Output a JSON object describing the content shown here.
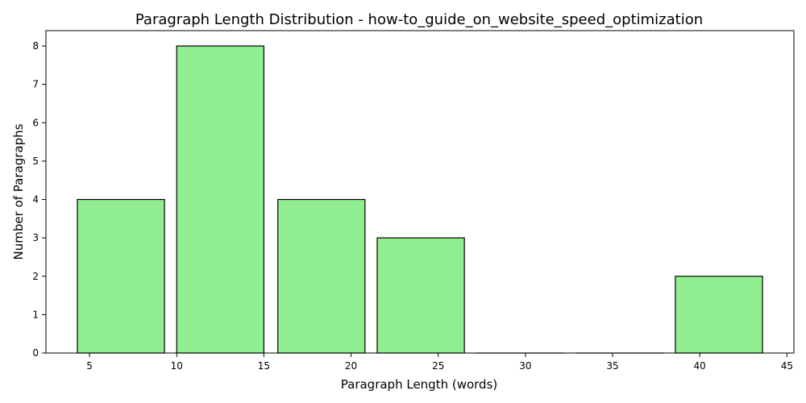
{
  "chart_data": {
    "type": "bar",
    "title": "Paragraph Length Distribution - how-to_guide_on_website_speed_optimization",
    "xlabel": "Paragraph Length (words)",
    "ylabel": "Number of Paragraphs",
    "bins": [
      {
        "start": 4.3,
        "end": 9.3,
        "count": 4
      },
      {
        "start": 10.0,
        "end": 15.0,
        "count": 8
      },
      {
        "start": 15.8,
        "end": 20.8,
        "count": 4
      },
      {
        "start": 21.5,
        "end": 26.5,
        "count": 3
      },
      {
        "start": 27.2,
        "end": 32.2,
        "count": 0
      },
      {
        "start": 32.9,
        "end": 37.9,
        "count": 0
      },
      {
        "start": 38.6,
        "end": 43.6,
        "count": 2
      }
    ],
    "xlim": [
      2.5,
      45.4
    ],
    "ylim": [
      0,
      8.4
    ],
    "xticks": [
      5,
      10,
      15,
      20,
      25,
      30,
      35,
      40,
      45
    ],
    "yticks": [
      0,
      1,
      2,
      3,
      4,
      5,
      6,
      7,
      8
    ],
    "bar_color": "#90ee90",
    "edge_color": "#000000",
    "grid": false,
    "legend": false
  }
}
